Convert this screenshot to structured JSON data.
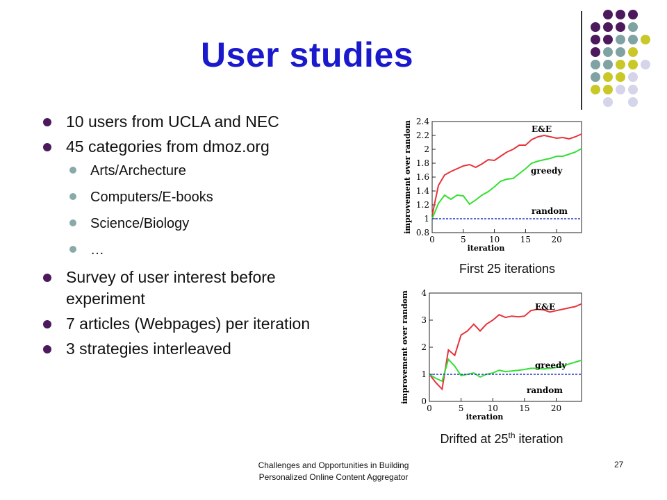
{
  "slide": {
    "title": "User studies",
    "bullets": [
      {
        "text": "10 users from UCLA and NEC",
        "level": 1
      },
      {
        "text": "45 categories from dmoz.org",
        "level": 1
      },
      {
        "text": "Arts/Archecture",
        "level": 2
      },
      {
        "text": "Computers/E-books",
        "level": 2
      },
      {
        "text": "Science/Biology",
        "level": 2
      },
      {
        "text": "…",
        "level": 2
      },
      {
        "text": "Survey of user interest before experiment",
        "level": 1
      },
      {
        "text": "7 articles (Webpages) per iteration",
        "level": 1
      },
      {
        "text": "3 strategies interleaved",
        "level": 1
      }
    ],
    "caption1": "First 25 iterations",
    "caption2_main": "Drifted at 25",
    "caption2_sup": "th",
    "caption2_rest": " iteration",
    "footer_line1": "Challenges and Opportunities in Building",
    "footer_line2": "Personalized Online Content Aggregator",
    "page_number": "27"
  },
  "colors": {
    "title": "#1a1acc",
    "purple": "#4c1a5c",
    "teal": "#7fa3a3",
    "olive": "#c9c828",
    "lavender": "#d4d4ea",
    "ee": "#e8323a",
    "greedy": "#33e033",
    "random": "#2233cc"
  },
  "chart_data": [
    {
      "type": "line",
      "xlabel": "iteration",
      "ylabel": "improvement over random",
      "xlim": [
        0,
        24
      ],
      "ylim": [
        0.8,
        2.4
      ],
      "xticks": [
        0,
        5,
        10,
        15,
        20
      ],
      "yticks": [
        0.8,
        1,
        1.2,
        1.4,
        1.6,
        1.8,
        2,
        2.2,
        2.4
      ],
      "series": [
        {
          "name": "E&E",
          "x": [
            0,
            1,
            2,
            3,
            4,
            5,
            6,
            7,
            8,
            9,
            10,
            11,
            12,
            13,
            14,
            15,
            16,
            17,
            18,
            19,
            20,
            21,
            22,
            23,
            24
          ],
          "values": [
            1.05,
            1.48,
            1.63,
            1.68,
            1.72,
            1.76,
            1.78,
            1.74,
            1.79,
            1.85,
            1.84,
            1.9,
            1.96,
            2.0,
            2.06,
            2.06,
            2.14,
            2.18,
            2.2,
            2.18,
            2.16,
            2.17,
            2.15,
            2.18,
            2.22
          ]
        },
        {
          "name": "greedy",
          "x": [
            0,
            1,
            2,
            3,
            4,
            5,
            6,
            7,
            8,
            9,
            10,
            11,
            12,
            13,
            14,
            15,
            16,
            17,
            18,
            19,
            20,
            21,
            22,
            23,
            24
          ],
          "values": [
            1.0,
            1.22,
            1.34,
            1.28,
            1.34,
            1.33,
            1.21,
            1.27,
            1.34,
            1.39,
            1.46,
            1.54,
            1.57,
            1.58,
            1.65,
            1.72,
            1.8,
            1.83,
            1.85,
            1.87,
            1.9,
            1.9,
            1.93,
            1.96,
            2.01
          ]
        },
        {
          "name": "random",
          "x": [
            0,
            24
          ],
          "values": [
            1.0,
            1.0
          ]
        }
      ]
    },
    {
      "type": "line",
      "xlabel": "iteration",
      "ylabel": "improvement over random",
      "xlim": [
        0,
        24
      ],
      "ylim": [
        0,
        4
      ],
      "xticks": [
        0,
        5,
        10,
        15,
        20
      ],
      "yticks": [
        0,
        1,
        2,
        3,
        4
      ],
      "series": [
        {
          "name": "E&E",
          "x": [
            0,
            1,
            2,
            3,
            4,
            5,
            6,
            7,
            8,
            9,
            10,
            11,
            12,
            13,
            14,
            15,
            16,
            17,
            18,
            19,
            20,
            21,
            22,
            23,
            24
          ],
          "values": [
            1.0,
            0.7,
            0.45,
            1.9,
            1.7,
            2.45,
            2.6,
            2.85,
            2.6,
            2.85,
            3.0,
            3.2,
            3.1,
            3.15,
            3.12,
            3.15,
            3.35,
            3.4,
            3.38,
            3.3,
            3.35,
            3.4,
            3.45,
            3.5,
            3.6
          ]
        },
        {
          "name": "greedy",
          "x": [
            0,
            1,
            2,
            3,
            4,
            5,
            6,
            7,
            8,
            9,
            10,
            11,
            12,
            13,
            14,
            15,
            16,
            17,
            18,
            19,
            20,
            21,
            22,
            23,
            24
          ],
          "values": [
            1.0,
            0.85,
            0.75,
            1.55,
            1.3,
            0.95,
            1.0,
            1.05,
            0.9,
            1.0,
            1.05,
            1.15,
            1.1,
            1.12,
            1.15,
            1.18,
            1.22,
            1.22,
            1.2,
            1.22,
            1.25,
            1.3,
            1.38,
            1.45,
            1.52
          ]
        },
        {
          "name": "random",
          "x": [
            0,
            24
          ],
          "values": [
            1.0,
            1.0
          ]
        }
      ]
    }
  ]
}
